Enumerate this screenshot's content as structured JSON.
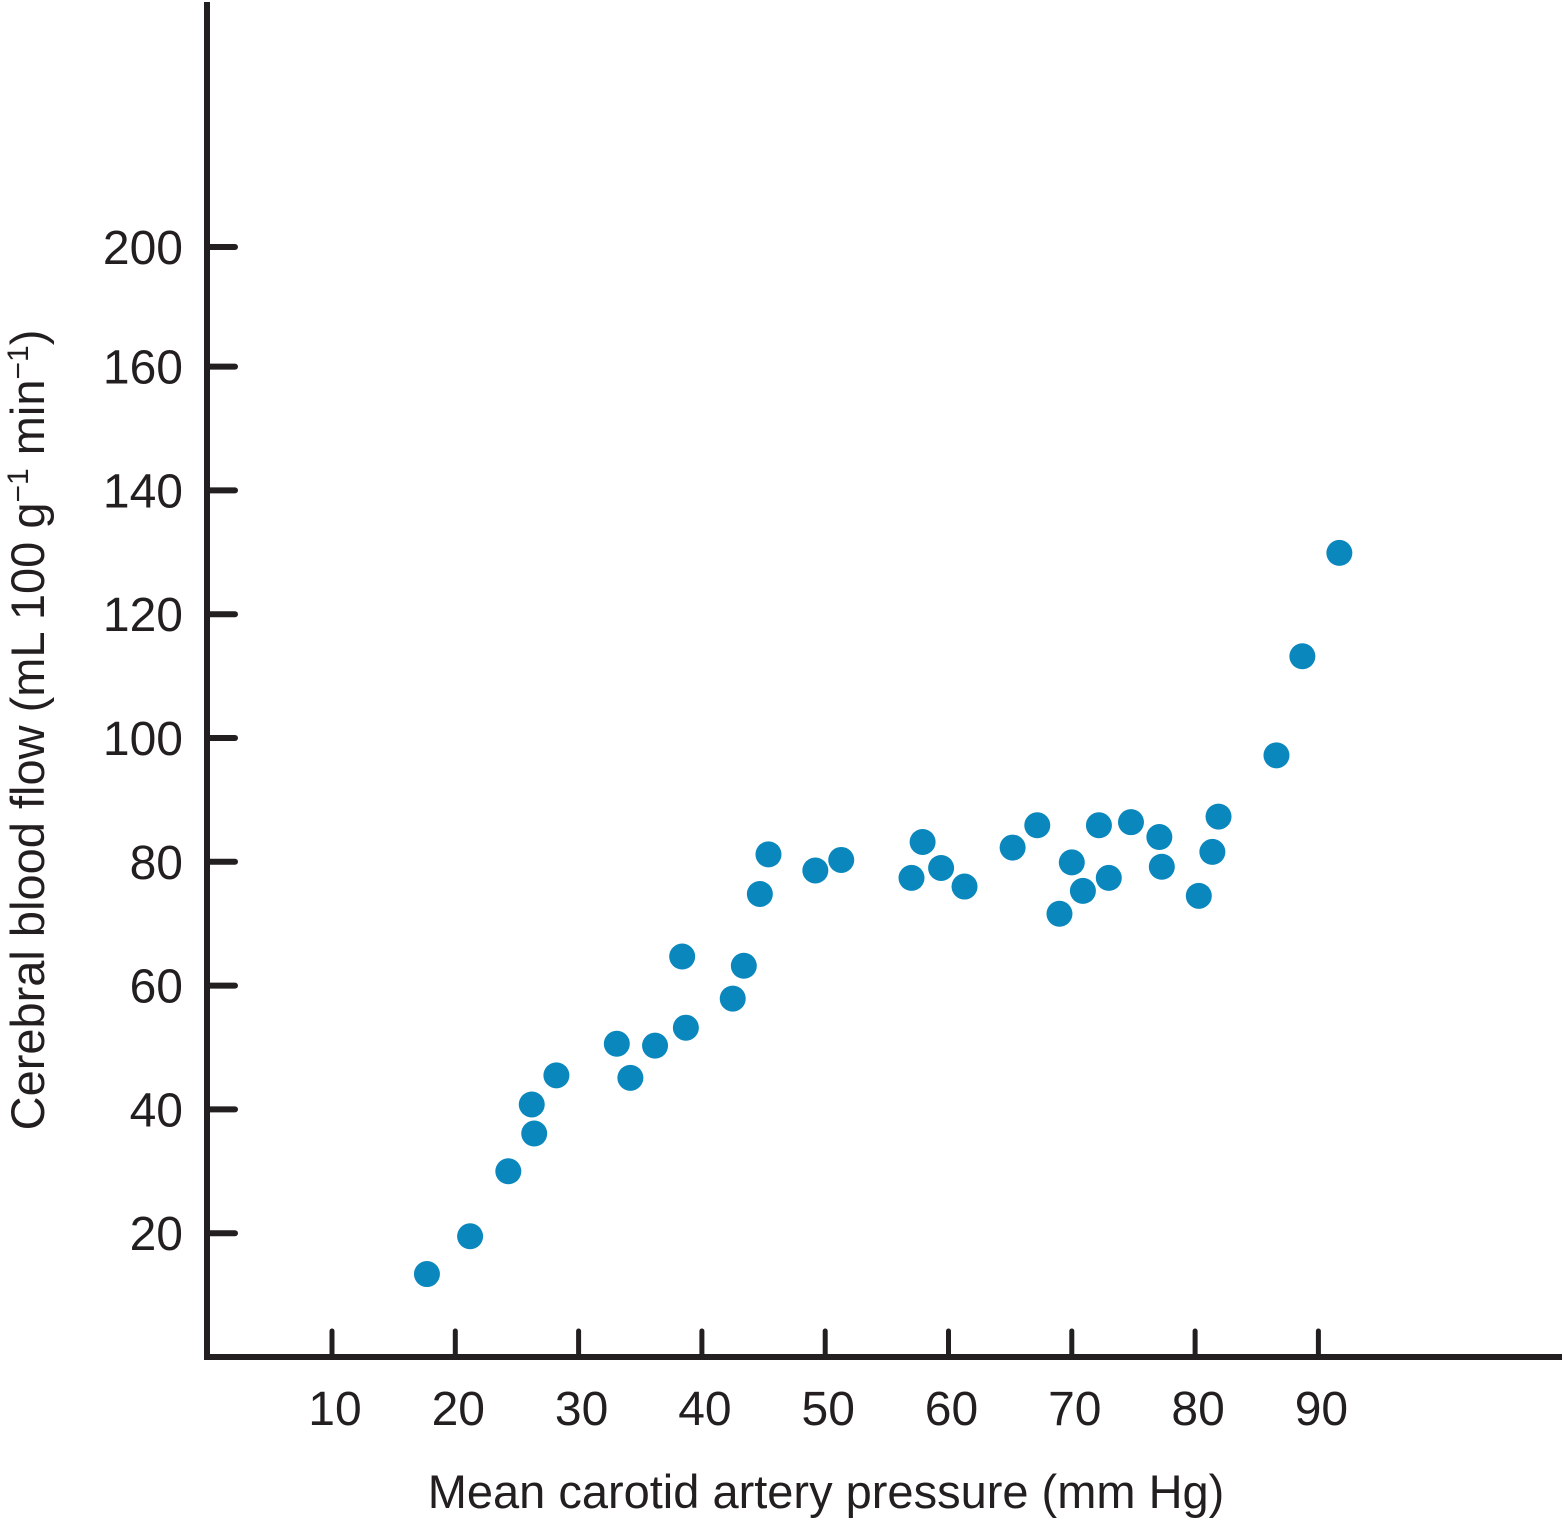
{
  "chart_data": {
    "type": "scatter",
    "title": "",
    "xlabel": "Mean carotid artery pressure (mm Hg)",
    "ylabel": "Cerebral blood flow (mL 100 g⁻¹ min⁻¹)",
    "ylabel_parts": {
      "main": "Cerebral blood flow (mL 100 g",
      "sup1": "−1",
      "mid": " min",
      "sup2": "−1",
      "end": ")"
    },
    "x_ticks": [
      10,
      20,
      30,
      40,
      50,
      60,
      70,
      80,
      90
    ],
    "x_tick_labels": [
      "10",
      "20",
      "30",
      "40",
      "50",
      "60",
      "70",
      "80",
      "90"
    ],
    "y_ticks": [
      20,
      40,
      60,
      80,
      100,
      120,
      140,
      160,
      200
    ],
    "y_tick_labels": [
      "20",
      "40",
      "60",
      "80",
      "100",
      "120",
      "140",
      "160",
      "200"
    ],
    "y_tick_note": "Axis break: the '200' label sits where 180 would be on the linear scale",
    "xlim": [
      0,
      100
    ],
    "ylim": [
      0,
      220
    ],
    "grid": false,
    "legend": null,
    "marker_color": "#0a87bd",
    "axis_color": "#231f20",
    "series": [
      {
        "name": "Cerebral blood flow",
        "points": [
          [
            17.7,
            13.4
          ],
          [
            21.2,
            19.5
          ],
          [
            24.3,
            30.0
          ],
          [
            26.2,
            40.8
          ],
          [
            26.4,
            36.1
          ],
          [
            28.2,
            45.5
          ],
          [
            33.1,
            50.6
          ],
          [
            34.2,
            45.1
          ],
          [
            36.2,
            50.3
          ],
          [
            38.4,
            64.7
          ],
          [
            38.7,
            53.2
          ],
          [
            42.5,
            57.9
          ],
          [
            43.4,
            63.2
          ],
          [
            44.7,
            74.8
          ],
          [
            45.4,
            81.2
          ],
          [
            49.2,
            78.6
          ],
          [
            51.3,
            80.3
          ],
          [
            57.0,
            77.4
          ],
          [
            57.9,
            83.2
          ],
          [
            59.4,
            79.0
          ],
          [
            61.3,
            76.0
          ],
          [
            65.2,
            82.3
          ],
          [
            67.2,
            85.9
          ],
          [
            69.0,
            71.6
          ],
          [
            70.0,
            79.9
          ],
          [
            70.9,
            75.3
          ],
          [
            72.2,
            85.9
          ],
          [
            73.0,
            77.4
          ],
          [
            74.8,
            86.4
          ],
          [
            77.1,
            84.0
          ],
          [
            77.3,
            79.2
          ],
          [
            80.3,
            74.5
          ],
          [
            81.4,
            81.6
          ],
          [
            81.9,
            87.3
          ],
          [
            86.6,
            97.2
          ],
          [
            88.7,
            113.2
          ],
          [
            91.7,
            129.9
          ]
        ]
      }
    ]
  }
}
